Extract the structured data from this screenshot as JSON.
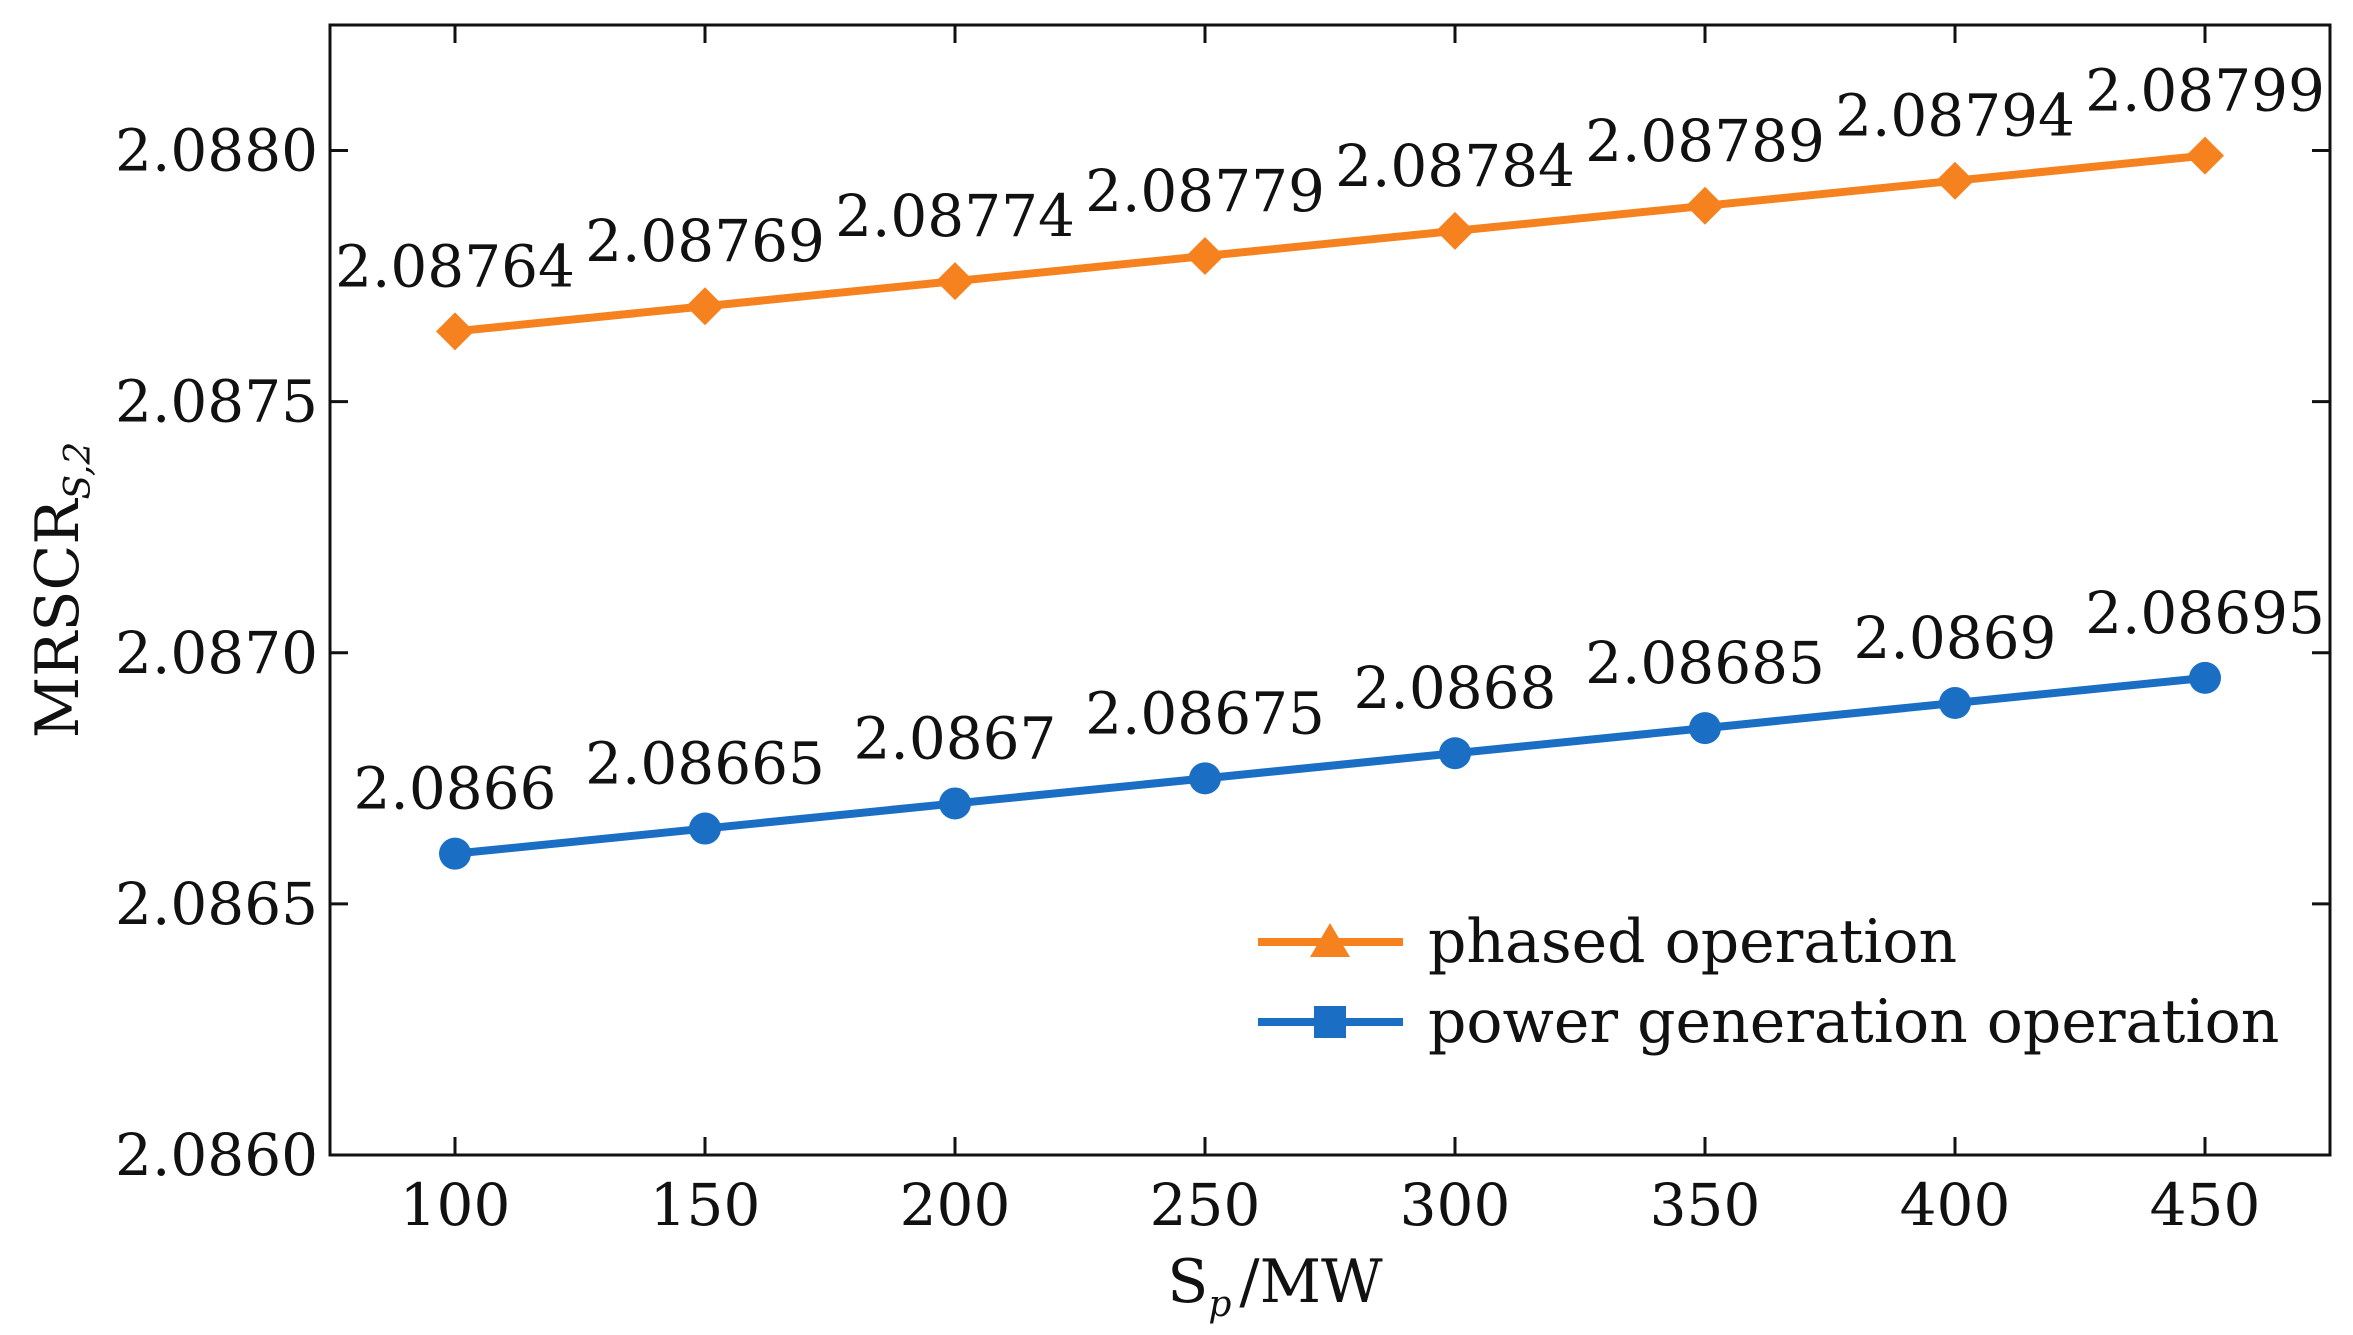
{
  "chart_data": {
    "type": "line",
    "title": "",
    "xlabel": "S",
    "xlabel_sub": "p",
    "xlabel_unit": "/MW",
    "ylabel": "MRSCR",
    "ylabel_sub": "S,2",
    "x": [
      100,
      150,
      200,
      250,
      300,
      350,
      400,
      450
    ],
    "xlim": [
      75,
      475
    ],
    "ylim": [
      2.086,
      2.08825
    ],
    "xticks": [
      100,
      150,
      200,
      250,
      300,
      350,
      400,
      450
    ],
    "xtick_labels": [
      "100",
      "150",
      "200",
      "250",
      "300",
      "350",
      "400",
      "450"
    ],
    "yticks": [
      2.086,
      2.0865,
      2.087,
      2.0875,
      2.088
    ],
    "ytick_labels": [
      "2.0860",
      "2.0865",
      "2.0870",
      "2.0875",
      "2.0880"
    ],
    "legend_position": "lower-right",
    "series": [
      {
        "name": "phased operation",
        "color": "#f5821f",
        "marker": "diamond",
        "legend_marker": "triangle",
        "values": [
          2.08764,
          2.08769,
          2.08774,
          2.08779,
          2.08784,
          2.08789,
          2.08794,
          2.08799
        ],
        "labels": [
          "2.08764",
          "2.08769",
          "2.08774",
          "2.08779",
          "2.08784",
          "2.08789",
          "2.08794",
          "2.08799"
        ]
      },
      {
        "name": "power generation operation",
        "color": "#1a6fc4",
        "marker": "circle",
        "legend_marker": "square",
        "values": [
          2.0866,
          2.08665,
          2.0867,
          2.08675,
          2.0868,
          2.08685,
          2.0869,
          2.08695
        ],
        "labels": [
          "2.0866",
          "2.08665",
          "2.0867",
          "2.08675",
          "2.0868",
          "2.08685",
          "2.0869",
          "2.08695"
        ]
      }
    ]
  }
}
